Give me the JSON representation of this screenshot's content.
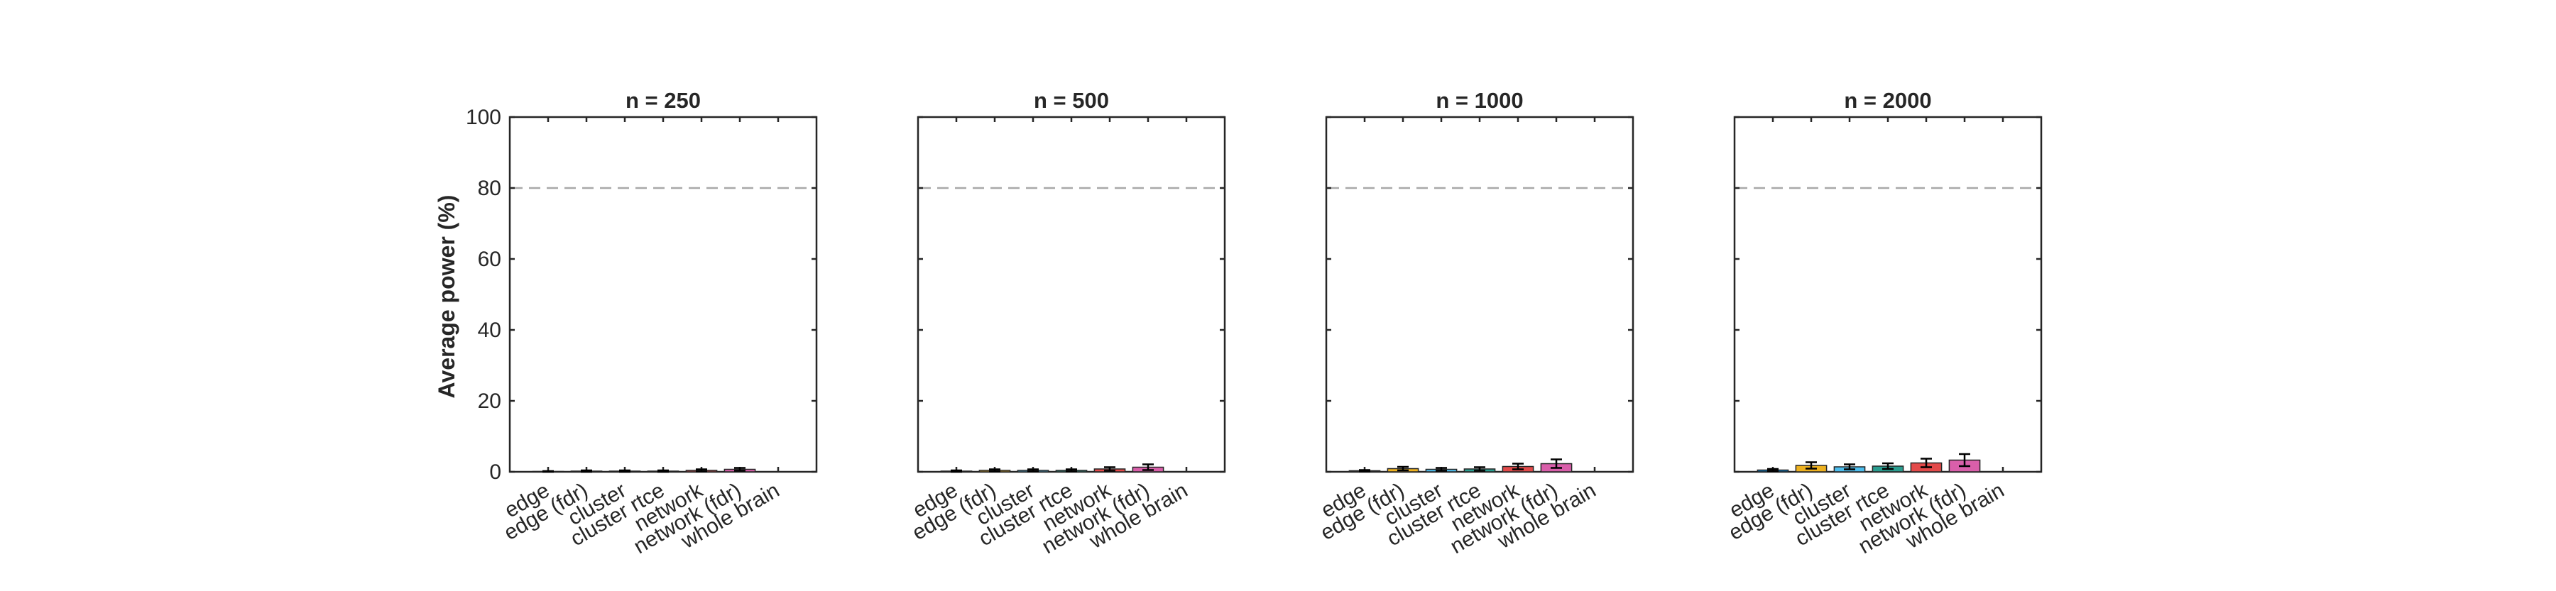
{
  "chart_data": {
    "type": "bar",
    "ylabel": "Average power (%)",
    "ylim": [
      0,
      100
    ],
    "yticks": [
      0,
      20,
      40,
      60,
      80,
      100
    ],
    "reference_line": 80,
    "categories": [
      "edge",
      "edge (fdr)",
      "cluster",
      "cluster rtce",
      "network",
      "network (fdr)",
      "whole brain"
    ],
    "bar_colors": [
      "#0072bd",
      "#edb120",
      "#4dbeee",
      "#2a9d8f",
      "#e34a4a",
      "#d95faa",
      "#8c8c8c"
    ],
    "panels": [
      {
        "title": "n = 250",
        "values": [
          0.1,
          0.2,
          0.2,
          0.2,
          0.4,
          0.7,
          0
        ],
        "errors": [
          0.1,
          0.2,
          0.2,
          0.2,
          0.3,
          0.4,
          0
        ]
      },
      {
        "title": "n = 500",
        "values": [
          0.2,
          0.4,
          0.4,
          0.4,
          0.8,
          1.3,
          0
        ],
        "errors": [
          0.2,
          0.3,
          0.3,
          0.3,
          0.5,
          0.8,
          0
        ]
      },
      {
        "title": "n = 1000",
        "values": [
          0.3,
          0.9,
          0.7,
          0.8,
          1.5,
          2.3,
          0
        ],
        "errors": [
          0.2,
          0.5,
          0.4,
          0.5,
          0.8,
          1.2,
          0
        ]
      },
      {
        "title": "n = 2000",
        "values": [
          0.5,
          1.8,
          1.4,
          1.6,
          2.5,
          3.3,
          0
        ],
        "errors": [
          0.3,
          0.9,
          0.7,
          0.8,
          1.2,
          1.7,
          0
        ]
      }
    ]
  }
}
